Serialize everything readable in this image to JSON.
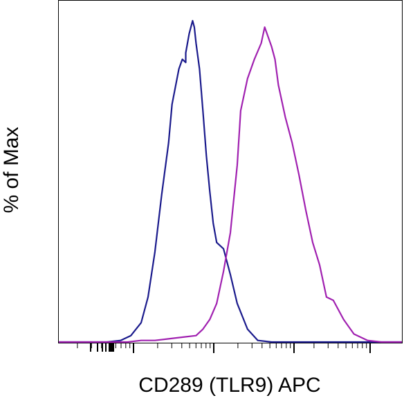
{
  "chart_data": {
    "type": "line",
    "xlabel": "CD289 (TLR9) APC",
    "ylabel": "% of Max",
    "x_scale": "log",
    "xlim": [
      0,
      1
    ],
    "ylim": [
      0,
      100
    ],
    "grid": false,
    "legend": "none",
    "series": [
      {
        "color": "#1a1a8c",
        "x": [
          0.0,
          0.08,
          0.14,
          0.18,
          0.21,
          0.24,
          0.26,
          0.28,
          0.3,
          0.32,
          0.33,
          0.35,
          0.36,
          0.37,
          0.37,
          0.38,
          0.39,
          0.395,
          0.4,
          0.41,
          0.42,
          0.43,
          0.44,
          0.45,
          0.46,
          0.48,
          0.5,
          0.52,
          0.55,
          0.58,
          0.62,
          0.7,
          0.8,
          1.0
        ],
        "y": [
          0,
          0,
          0,
          0.5,
          2,
          6,
          14,
          28,
          46,
          62,
          74,
          85,
          88,
          87,
          90,
          96,
          100,
          98,
          93,
          85,
          72,
          58,
          47,
          37,
          31,
          29,
          21,
          12,
          4,
          0.5,
          0,
          0,
          0,
          0
        ]
      },
      {
        "color": "#a020b0",
        "x": [
          0.0,
          0.2,
          0.24,
          0.28,
          0.32,
          0.36,
          0.4,
          0.42,
          0.44,
          0.46,
          0.48,
          0.5,
          0.52,
          0.53,
          0.55,
          0.57,
          0.59,
          0.6,
          0.62,
          0.63,
          0.64,
          0.66,
          0.68,
          0.7,
          0.72,
          0.74,
          0.76,
          0.78,
          0.8,
          0.83,
          0.86,
          0.9,
          0.94,
          1.0
        ],
        "y": [
          0,
          0,
          0.5,
          0.5,
          1,
          1.5,
          2,
          4,
          7,
          12,
          22,
          34,
          55,
          72,
          82,
          88,
          93,
          98,
          92,
          88,
          80,
          70,
          62,
          52,
          41,
          31,
          24,
          14,
          13,
          7,
          2.5,
          0.5,
          0,
          0
        ]
      }
    ]
  }
}
